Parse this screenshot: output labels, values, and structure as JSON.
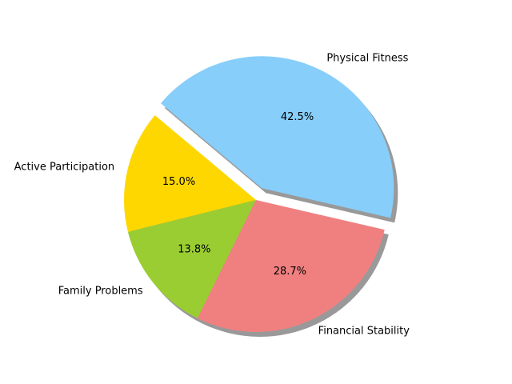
{
  "chart_data": {
    "type": "pie",
    "slices": [
      {
        "label": "Active Participation",
        "value": 15.0,
        "pct_label": "15.0%",
        "color": "#FFD700",
        "explode": false
      },
      {
        "label": "Family Problems",
        "value": 13.8,
        "pct_label": "13.8%",
        "color": "#9ACD32",
        "explode": false
      },
      {
        "label": "Financial Stability",
        "value": 28.7,
        "pct_label": "28.7%",
        "color": "#F08080",
        "explode": false
      },
      {
        "label": "Physical Fitness",
        "value": 42.5,
        "pct_label": "42.5%",
        "color": "#87CEFA",
        "explode": true
      }
    ],
    "start_angle_deg": 140,
    "counterclockwise": true,
    "shadow": true,
    "title": ""
  }
}
